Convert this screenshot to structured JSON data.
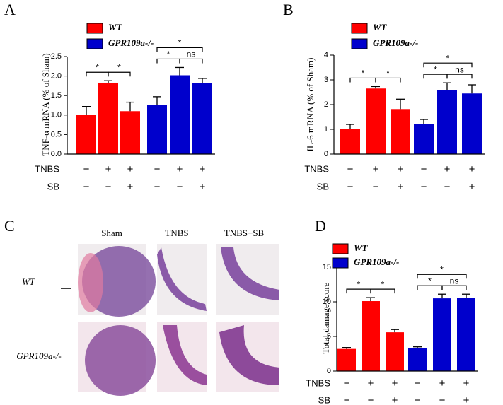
{
  "chart_data": [
    {
      "type": "bar",
      "panel": "A",
      "y_label": "TNF-α mRNA (% of Sham)",
      "series": [
        {
          "name": "WT",
          "color": "#ff0000",
          "values": [
            1.0,
            1.83,
            1.1
          ],
          "errors": [
            0.22,
            0.05,
            0.23
          ]
        },
        {
          "name": "GPR109a-/-",
          "color": "#0000cc",
          "values": [
            1.25,
            2.02,
            1.82
          ],
          "errors": [
            0.22,
            0.2,
            0.12
          ]
        }
      ],
      "ylim": [
        0,
        2.5
      ],
      "yticks": [
        {
          "value": 0,
          "label": "0.0"
        },
        {
          "value": 0.5,
          "label": "0.5"
        },
        {
          "value": 1,
          "label": "1.0"
        },
        {
          "value": 1.5,
          "label": "1.5"
        },
        {
          "value": 2,
          "label": "2.0"
        },
        {
          "value": 2.5,
          "label": "2.5"
        }
      ],
      "conditions": [
        {
          "name": "TNBS",
          "values": [
            "−",
            "+",
            "+",
            "−",
            "+",
            "+"
          ]
        },
        {
          "name": "SB",
          "values": [
            "−",
            "−",
            "+",
            "−",
            "−",
            "+"
          ]
        }
      ],
      "significance": [
        "*",
        "*",
        "*",
        "ns",
        "*"
      ]
    },
    {
      "type": "bar",
      "panel": "B",
      "y_label": "IL-6 mRNA (% of Sham)",
      "series": [
        {
          "name": "WT",
          "color": "#ff0000",
          "values": [
            1.0,
            2.65,
            1.82
          ],
          "errors": [
            0.2,
            0.08,
            0.4
          ]
        },
        {
          "name": "GPR109a-/-",
          "color": "#0000cc",
          "values": [
            1.2,
            2.58,
            2.45
          ],
          "errors": [
            0.2,
            0.3,
            0.35
          ]
        }
      ],
      "ylim": [
        0,
        4
      ],
      "yticks": [
        0,
        1,
        2,
        3,
        4
      ],
      "conditions": [
        {
          "name": "TNBS",
          "values": [
            "−",
            "+",
            "+",
            "−",
            "+",
            "+"
          ]
        },
        {
          "name": "SB",
          "values": [
            "−",
            "−",
            "+",
            "−",
            "−",
            "+"
          ]
        }
      ],
      "significance": [
        "*",
        "*",
        "*",
        "ns",
        "*"
      ]
    },
    {
      "type": "bar",
      "panel": "D",
      "y_label": "Total damage score",
      "series": [
        {
          "name": "WT",
          "color": "#ff0000",
          "values": [
            3.2,
            10.1,
            5.6
          ],
          "errors": [
            0.2,
            0.5,
            0.4
          ]
        },
        {
          "name": "GPR109a-/-",
          "color": "#0000cc",
          "values": [
            3.3,
            10.5,
            10.6
          ],
          "errors": [
            0.2,
            0.6,
            0.5
          ]
        }
      ],
      "ylim": [
        0,
        15
      ],
      "yticks": [
        0,
        5,
        10,
        15
      ],
      "conditions": [
        {
          "name": "TNBS",
          "values": [
            "−",
            "+",
            "+",
            "−",
            "+",
            "+"
          ]
        },
        {
          "name": "SB",
          "values": [
            "−",
            "−",
            "+",
            "−",
            "−",
            "+"
          ]
        }
      ],
      "significance": [
        "*",
        "*",
        "*",
        "ns",
        "*"
      ]
    }
  ],
  "panel_c": {
    "label": "C",
    "columns": [
      "Sham",
      "TNBS",
      "TNBS+SB"
    ],
    "rows": [
      "WT",
      "GPR109a-/-"
    ]
  }
}
